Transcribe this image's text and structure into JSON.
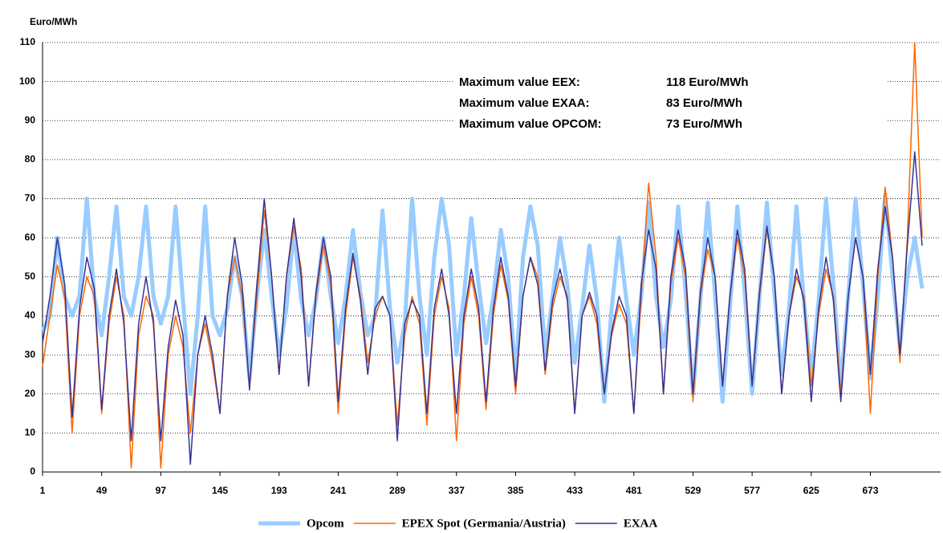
{
  "chart_data": {
    "type": "line",
    "y_label": "Euro/MWh",
    "x": [
      1,
      7,
      13,
      19,
      25,
      31,
      37,
      43,
      49,
      55,
      61,
      67,
      73,
      79,
      85,
      91,
      97,
      103,
      109,
      115,
      121,
      127,
      133,
      139,
      145,
      151,
      157,
      163,
      169,
      175,
      181,
      187,
      193,
      199,
      205,
      211,
      217,
      223,
      229,
      235,
      241,
      247,
      253,
      259,
      265,
      271,
      277,
      283,
      289,
      295,
      301,
      307,
      313,
      319,
      325,
      331,
      337,
      343,
      349,
      355,
      361,
      367,
      373,
      379,
      385,
      391,
      397,
      403,
      409,
      415,
      421,
      427,
      433,
      439,
      445,
      451,
      457,
      463,
      469,
      475,
      481,
      487,
      493,
      499,
      505,
      511,
      517,
      523,
      529,
      535,
      541,
      547,
      553,
      559,
      565,
      571,
      577,
      583,
      589,
      595,
      601,
      607,
      613,
      619,
      625,
      631,
      637,
      643,
      649,
      655,
      661,
      667,
      673,
      679,
      685,
      691,
      697,
      703,
      709,
      715
    ],
    "xlim": [
      1,
      730
    ],
    "xticks": [
      1,
      49,
      97,
      145,
      193,
      241,
      289,
      337,
      385,
      433,
      481,
      529,
      577,
      625,
      673
    ],
    "ylim": [
      0,
      110
    ],
    "yticks": [
      0,
      10,
      20,
      30,
      40,
      50,
      60,
      70,
      80,
      90,
      100,
      110
    ],
    "grid": true,
    "series": [
      {
        "name": "Opcom",
        "color": "#99ccff",
        "width": 5,
        "values": [
          36,
          40,
          60,
          45,
          40,
          45,
          70,
          45,
          35,
          50,
          68,
          45,
          40,
          50,
          68,
          45,
          38,
          45,
          68,
          44,
          20,
          40,
          68,
          40,
          35,
          42,
          55,
          45,
          24,
          45,
          62,
          45,
          30,
          42,
          62,
          44,
          35,
          44,
          60,
          45,
          33,
          45,
          62,
          46,
          35,
          40,
          67,
          42,
          28,
          38,
          70,
          45,
          30,
          55,
          70,
          58,
          30,
          45,
          65,
          48,
          33,
          45,
          62,
          50,
          24,
          55,
          68,
          58,
          30,
          45,
          60,
          48,
          28,
          42,
          58,
          44,
          18,
          42,
          60,
          44,
          30,
          45,
          69,
          45,
          32,
          44,
          68,
          46,
          20,
          44,
          69,
          45,
          18,
          42,
          68,
          46,
          20,
          45,
          69,
          46,
          25,
          42,
          68,
          44,
          24,
          44,
          70,
          48,
          22,
          45,
          70,
          48,
          24,
          45,
          71,
          50,
          32,
          50,
          60,
          47
        ]
      },
      {
        "name": "EPEX Spot (Germania/Austria)",
        "color": "#ff6600",
        "width": 1.5,
        "values": [
          27,
          40,
          53,
          45,
          10,
          40,
          50,
          45,
          15,
          38,
          50,
          40,
          1,
          35,
          45,
          40,
          1,
          30,
          40,
          32,
          10,
          30,
          38,
          28,
          15,
          45,
          55,
          45,
          22,
          45,
          67,
          50,
          25,
          50,
          63,
          52,
          22,
          45,
          58,
          48,
          15,
          40,
          55,
          45,
          28,
          40,
          45,
          40,
          12,
          35,
          45,
          38,
          12,
          40,
          50,
          42,
          8,
          38,
          50,
          40,
          16,
          40,
          53,
          44,
          20,
          45,
          55,
          50,
          25,
          42,
          50,
          45,
          15,
          40,
          45,
          38,
          20,
          35,
          43,
          38,
          15,
          45,
          74,
          55,
          20,
          48,
          60,
          50,
          18,
          45,
          57,
          50,
          22,
          45,
          60,
          50,
          22,
          45,
          62,
          50,
          20,
          40,
          50,
          45,
          22,
          40,
          52,
          45,
          20,
          45,
          60,
          50,
          15,
          50,
          73,
          55,
          28,
          60,
          110,
          60
        ]
      },
      {
        "name": "EXAA",
        "color": "#333399",
        "width": 1.5,
        "values": [
          33,
          45,
          60,
          48,
          14,
          42,
          55,
          47,
          16,
          40,
          52,
          38,
          8,
          38,
          50,
          38,
          8,
          32,
          44,
          35,
          2,
          30,
          40,
          30,
          15,
          45,
          60,
          48,
          21,
          48,
          70,
          50,
          25,
          50,
          65,
          50,
          22,
          46,
          60,
          50,
          18,
          42,
          56,
          44,
          25,
          42,
          45,
          40,
          8,
          38,
          44,
          40,
          15,
          42,
          52,
          40,
          15,
          40,
          52,
          42,
          18,
          42,
          55,
          45,
          22,
          45,
          55,
          48,
          26,
          44,
          52,
          44,
          15,
          40,
          46,
          40,
          20,
          36,
          45,
          40,
          15,
          48,
          62,
          52,
          20,
          50,
          62,
          52,
          20,
          46,
          60,
          50,
          22,
          45,
          62,
          52,
          22,
          46,
          63,
          50,
          20,
          40,
          52,
          44,
          18,
          42,
          55,
          44,
          18,
          45,
          60,
          50,
          25,
          52,
          68,
          55,
          30,
          58,
          82,
          58
        ]
      }
    ],
    "annotations": [
      {
        "label": "Maximum value EEX:",
        "value": "118 Euro/MWh",
        "color": "#ff6600"
      },
      {
        "label": "Maximum value EXAA:",
        "value": "83 Euro/MWh",
        "color": "#333399"
      },
      {
        "label": "Maximum value OPCOM:",
        "value": "73 Euro/MWh",
        "color": "#99ccff"
      }
    ]
  }
}
